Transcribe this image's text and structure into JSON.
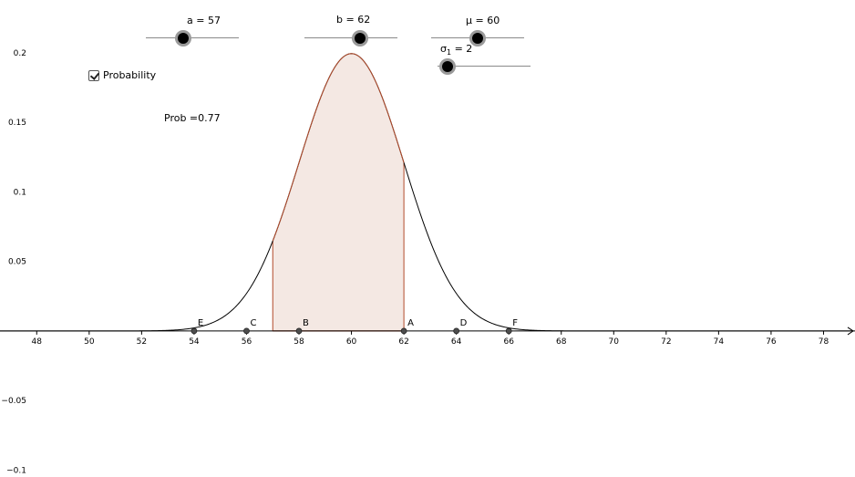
{
  "sliders": {
    "a": {
      "label": "a = 57",
      "value": 57,
      "min": 45,
      "max": 75
    },
    "b": {
      "label": "b = 62",
      "value": 62,
      "min": 50,
      "max": 70
    },
    "mu": {
      "label_prefix": "μ = ",
      "label_value": "60",
      "value": 60,
      "min": 45,
      "max": 75
    },
    "sigma": {
      "label_symbol": "σ",
      "label_sub": "1",
      "label_rest": " = 2",
      "value": 2,
      "min": 1,
      "max": 10
    }
  },
  "checkbox": {
    "label": "Probability",
    "checked": true
  },
  "prob_text": "Prob =0.77",
  "chart_data": {
    "type": "area",
    "function": "normal_pdf",
    "mu": 60,
    "sigma": 2,
    "shade_from": 57,
    "shade_to": 62,
    "xlim": [
      46.6,
      79.2
    ],
    "ylim": [
      -0.105,
      0.238
    ],
    "x_ticks": [
      48,
      50,
      52,
      54,
      56,
      58,
      60,
      62,
      64,
      66,
      68,
      70,
      72,
      74,
      76,
      78
    ],
    "x_tick_labels": [
      "48",
      "50",
      "52",
      "54",
      "56",
      "58",
      "60",
      "62",
      "64",
      "66",
      "68",
      "70",
      "72",
      "74",
      "76",
      "78"
    ],
    "y_ticks": [
      -0.1,
      -0.05,
      0.05,
      0.1,
      0.15,
      0.2
    ],
    "y_tick_labels": [
      "−0.1",
      "−0.05",
      "0.05",
      "0.1",
      "0.15",
      "0.2"
    ],
    "points": [
      {
        "name": "E",
        "x": 54
      },
      {
        "name": "C",
        "x": 56
      },
      {
        "name": "B",
        "x": 58
      },
      {
        "name": "A",
        "x": 62
      },
      {
        "name": "D",
        "x": 64
      },
      {
        "name": "F",
        "x": 66
      }
    ],
    "fill_color": "#f4e8e3",
    "edge_color": "#b24a2a",
    "curve_color": "#000000",
    "grid": false
  }
}
